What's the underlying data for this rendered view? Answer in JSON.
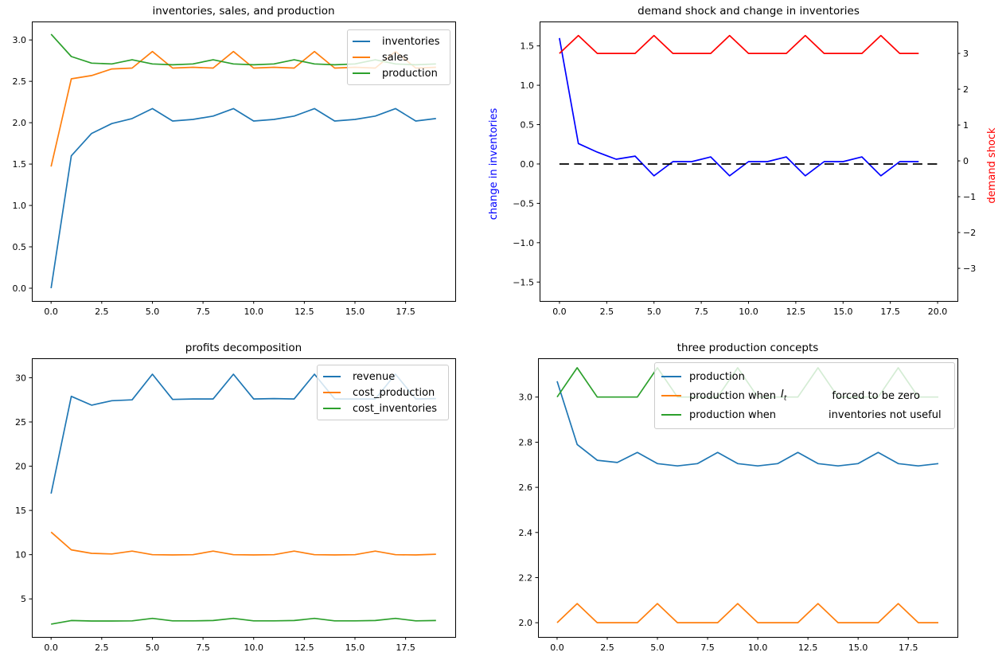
{
  "figure": {
    "background": "#ffffff"
  },
  "palette": {
    "blue": "#1f77b4",
    "orange": "#ff7f0e",
    "green": "#2ca02c",
    "pure_blue": "#0000ff",
    "pure_red": "#ff0000",
    "black": "#000000"
  },
  "chart_data": [
    {
      "title": "inventories, sales, and production",
      "type": "line",
      "grid": false,
      "legend_position": "upper right",
      "x": [
        0,
        1,
        2,
        3,
        4,
        5,
        6,
        7,
        8,
        9,
        10,
        11,
        12,
        13,
        14,
        15,
        16,
        17,
        18,
        19
      ],
      "xlim": [
        -0.95,
        19.95
      ],
      "ylim": [
        -0.154,
        3.223
      ],
      "xtick_values": [
        0,
        2.5,
        5,
        7.5,
        10,
        12.5,
        15,
        17.5
      ],
      "xtick_labels": [
        "0.0",
        "2.5",
        "5.0",
        "7.5",
        "10.0",
        "12.5",
        "15.0",
        "17.5"
      ],
      "ytick_values": [
        0,
        0.5,
        1,
        1.5,
        2,
        2.5,
        3
      ],
      "ytick_labels": [
        "0.0",
        "0.5",
        "1.0",
        "1.5",
        "2.0",
        "2.5",
        "3.0"
      ],
      "series": [
        {
          "name": "inventories",
          "color": "#1f77b4",
          "values": [
            0.0,
            1.6,
            1.87,
            1.99,
            2.05,
            2.17,
            2.02,
            2.04,
            2.08,
            2.17,
            2.02,
            2.04,
            2.08,
            2.17,
            2.02,
            2.04,
            2.08,
            2.17,
            2.02,
            2.05
          ]
        },
        {
          "name": "sales",
          "color": "#ff7f0e",
          "values": [
            1.47,
            2.53,
            2.57,
            2.65,
            2.66,
            2.86,
            2.66,
            2.67,
            2.66,
            2.86,
            2.66,
            2.67,
            2.66,
            2.86,
            2.66,
            2.67,
            2.66,
            2.86,
            2.66,
            2.67
          ]
        },
        {
          "name": "production",
          "color": "#2ca02c",
          "values": [
            3.07,
            2.8,
            2.72,
            2.71,
            2.76,
            2.71,
            2.7,
            2.71,
            2.76,
            2.71,
            2.7,
            2.71,
            2.76,
            2.71,
            2.7,
            2.71,
            2.76,
            2.71,
            2.7,
            2.71
          ]
        }
      ],
      "legend_items": [
        {
          "color": "#1f77b4",
          "parts": [
            {
              "text": "inventories"
            }
          ]
        },
        {
          "color": "#ff7f0e",
          "parts": [
            {
              "text": "sales"
            }
          ]
        },
        {
          "color": "#2ca02c",
          "parts": [
            {
              "text": "production"
            }
          ]
        }
      ]
    },
    {
      "title": "demand shock and change in inventories",
      "type": "line",
      "grid": false,
      "x": [
        0,
        1,
        2,
        3,
        4,
        5,
        6,
        7,
        8,
        9,
        10,
        11,
        12,
        13,
        14,
        15,
        16,
        17,
        18,
        19
      ],
      "xlim": [
        -1.05,
        21.05
      ],
      "ylim": [
        -1.74,
        1.81
      ],
      "ylim_right": [
        -3.91,
        3.89
      ],
      "xtick_values": [
        0,
        2.5,
        5,
        7.5,
        10,
        12.5,
        15,
        17.5,
        20
      ],
      "xtick_labels": [
        "0.0",
        "2.5",
        "5.0",
        "7.5",
        "10.0",
        "12.5",
        "15.0",
        "17.5",
        "20.0"
      ],
      "ytick_values": [
        -1.5,
        -1,
        -0.5,
        0,
        0.5,
        1,
        1.5
      ],
      "ytick_labels": [
        "−1.5",
        "−1.0",
        "−0.5",
        "0.0",
        "0.5",
        "1.0",
        "1.5"
      ],
      "ytick_values_right": [
        -3,
        -2,
        -1,
        0,
        1,
        2,
        3
      ],
      "ytick_labels_right": [
        "−3",
        "−2",
        "−1",
        "0",
        "1",
        "2",
        "3"
      ],
      "ylabel_left": {
        "text": "change in inventories",
        "color": "#0000ff"
      },
      "ylabel_right": {
        "text": "demand shock",
        "color": "#ff0000"
      },
      "series": [
        {
          "name": "change in inventories",
          "color": "#0000ff",
          "values": [
            1.6,
            0.26,
            0.15,
            0.06,
            0.1,
            -0.15,
            0.03,
            0.03,
            0.09,
            -0.15,
            0.03,
            0.03,
            0.09,
            -0.15,
            0.03,
            0.03,
            0.09,
            -0.15,
            0.03,
            0.03
          ]
        },
        {
          "name": "demand shock",
          "color": "#ff0000",
          "axis": "right",
          "values": [
            3,
            3.5,
            3,
            3,
            3,
            3.5,
            3,
            3,
            3,
            3.5,
            3,
            3,
            3,
            3.5,
            3,
            3,
            3,
            3.5,
            3,
            3
          ]
        },
        {
          "name": "zero line",
          "color": "#000000",
          "dash": true,
          "x": [
            0,
            20
          ],
          "values": [
            0,
            0
          ]
        }
      ]
    },
    {
      "title": "profits decomposition",
      "type": "line",
      "grid": false,
      "legend_position": "upper right",
      "x": [
        0,
        1,
        2,
        3,
        4,
        5,
        6,
        7,
        8,
        9,
        10,
        11,
        12,
        13,
        14,
        15,
        16,
        17,
        18,
        19
      ],
      "xlim": [
        -0.95,
        19.95
      ],
      "ylim": [
        0.7,
        32.2
      ],
      "xtick_values": [
        0,
        2.5,
        5,
        7.5,
        10,
        12.5,
        15,
        17.5
      ],
      "xtick_labels": [
        "0.0",
        "2.5",
        "5.0",
        "7.5",
        "10.0",
        "12.5",
        "15.0",
        "17.5"
      ],
      "ytick_values": [
        5,
        10,
        15,
        20,
        25,
        30
      ],
      "ytick_labels": [
        "5",
        "10",
        "15",
        "20",
        "25",
        "30"
      ],
      "series": [
        {
          "name": "revenue",
          "color": "#1f77b4",
          "values": [
            16.9,
            27.9,
            26.9,
            27.4,
            27.5,
            30.4,
            27.55,
            27.6,
            27.6,
            30.4,
            27.6,
            27.65,
            27.6,
            30.4,
            27.6,
            27.6,
            27.6,
            30.4,
            27.6,
            27.65
          ]
        },
        {
          "name": "cost_production",
          "color": "#ff7f0e",
          "values": [
            12.55,
            10.55,
            10.15,
            10.08,
            10.4,
            10.0,
            9.97,
            10.0,
            10.4,
            10.0,
            9.97,
            10.0,
            10.4,
            10.0,
            9.97,
            10.0,
            10.4,
            10.0,
            9.97,
            10.05
          ]
        },
        {
          "name": "cost_inventories",
          "color": "#2ca02c",
          "values": [
            2.15,
            2.55,
            2.5,
            2.5,
            2.52,
            2.8,
            2.52,
            2.52,
            2.55,
            2.8,
            2.52,
            2.52,
            2.55,
            2.8,
            2.52,
            2.52,
            2.55,
            2.8,
            2.52,
            2.55
          ]
        }
      ],
      "legend_items": [
        {
          "color": "#1f77b4",
          "parts": [
            {
              "text": "revenue"
            }
          ]
        },
        {
          "color": "#ff7f0e",
          "parts": [
            {
              "text": "cost_production"
            }
          ]
        },
        {
          "color": "#2ca02c",
          "parts": [
            {
              "text": "cost_inventories"
            }
          ]
        }
      ]
    },
    {
      "title": "three production concepts",
      "type": "line",
      "grid": false,
      "legend_position": "upper right",
      "x": [
        0,
        1,
        2,
        3,
        4,
        5,
        6,
        7,
        8,
        9,
        10,
        11,
        12,
        13,
        14,
        15,
        16,
        17,
        18,
        19
      ],
      "xlim": [
        -0.95,
        19.95
      ],
      "ylim": [
        1.937,
        3.172
      ],
      "xtick_values": [
        0,
        2.5,
        5,
        7.5,
        10,
        12.5,
        15,
        17.5
      ],
      "xtick_labels": [
        "0.0",
        "2.5",
        "5.0",
        "7.5",
        "10.0",
        "12.5",
        "15.0",
        "17.5"
      ],
      "ytick_values": [
        2.0,
        2.2,
        2.4,
        2.6,
        2.8,
        3.0
      ],
      "ytick_labels": [
        "2.0",
        "2.2",
        "2.4",
        "2.6",
        "2.8",
        "3.0"
      ],
      "series": [
        {
          "name": "production",
          "color": "#1f77b4",
          "values": [
            3.07,
            2.79,
            2.72,
            2.71,
            2.755,
            2.705,
            2.695,
            2.705,
            2.755,
            2.705,
            2.695,
            2.705,
            2.755,
            2.705,
            2.695,
            2.705,
            2.755,
            2.705,
            2.695,
            2.705
          ]
        },
        {
          "name": "production when I_t forced to be zero",
          "color": "#ff7f0e",
          "values": [
            2.0,
            2.085,
            2.0,
            2.0,
            2.0,
            2.085,
            2.0,
            2.0,
            2.0,
            2.085,
            2.0,
            2.0,
            2.0,
            2.085,
            2.0,
            2.0,
            2.0,
            2.085,
            2.0,
            2.0
          ]
        },
        {
          "name": "production when inventories not useful",
          "color": "#2ca02c",
          "values": [
            3.0,
            3.13,
            3.0,
            3.0,
            3.0,
            3.13,
            3.0,
            3.0,
            3.0,
            3.13,
            3.0,
            3.0,
            3.0,
            3.13,
            3.0,
            3.0,
            3.0,
            3.13,
            3.0,
            3.0
          ]
        }
      ],
      "legend_items": [
        {
          "color": "#1f77b4",
          "parts": [
            {
              "text": "production"
            }
          ]
        },
        {
          "color": "#ff7f0e",
          "parts": [
            {
              "text": "production when"
            },
            {
              "gap": 6
            },
            {
              "math": "I",
              "sub": "t"
            },
            {
              "gap": 57
            },
            {
              "text": "forced to be zero"
            }
          ]
        },
        {
          "color": "#2ca02c",
          "parts": [
            {
              "text": "production when"
            },
            {
              "gap": 66
            },
            {
              "text": "inventories not useful"
            }
          ]
        }
      ]
    }
  ]
}
